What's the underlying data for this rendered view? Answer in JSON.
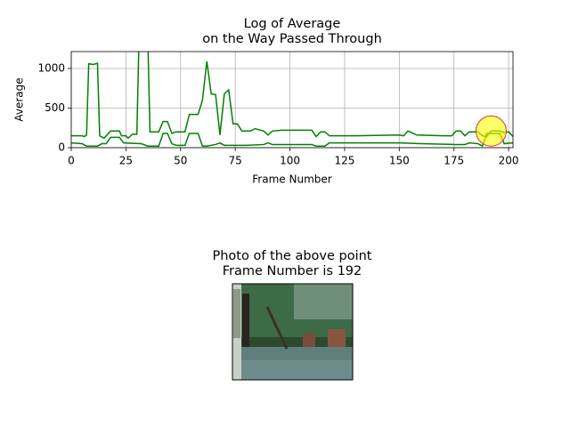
{
  "chart_data": {
    "type": "line",
    "title": [
      "Log of Average",
      "on the Way Passed Through"
    ],
    "xlabel": "Frame Number",
    "ylabel": "Average",
    "xlim": [
      0,
      202
    ],
    "ylim": [
      0,
      1213
    ],
    "xticks": [
      0,
      25,
      50,
      75,
      100,
      125,
      150,
      175,
      200
    ],
    "yticks": [
      0,
      500,
      1000
    ],
    "grid": true,
    "series": [
      {
        "color": "#008000",
        "x": [
          0,
          5,
          6,
          7,
          8,
          10,
          12,
          13,
          15,
          18,
          22,
          23,
          25,
          26,
          28,
          30,
          31,
          35,
          36,
          40,
          42,
          44,
          46,
          48,
          52,
          54,
          58,
          60,
          62,
          64,
          66,
          68,
          70,
          72,
          74,
          76,
          78,
          82,
          84,
          88,
          90,
          92,
          96,
          110,
          112,
          114,
          116,
          118,
          130,
          150,
          152,
          154,
          158,
          170,
          174,
          176,
          178,
          180,
          182,
          186,
          188,
          190,
          192,
          196,
          198,
          200,
          202
        ],
        "values": [
          150,
          150,
          140,
          160,
          1060,
          1050,
          1065,
          150,
          120,
          210,
          210,
          150,
          150,
          120,
          170,
          170,
          1400,
          1400,
          200,
          200,
          330,
          330,
          180,
          200,
          200,
          420,
          420,
          600,
          1090,
          680,
          670,
          160,
          680,
          730,
          300,
          300,
          210,
          210,
          240,
          210,
          160,
          210,
          220,
          220,
          140,
          200,
          200,
          150,
          150,
          160,
          150,
          210,
          160,
          150,
          150,
          210,
          210,
          150,
          200,
          200,
          150,
          140,
          210,
          210,
          190,
          200,
          140
        ]
      },
      {
        "color": "#008000",
        "x": [
          0,
          5,
          7,
          12,
          14,
          16,
          18,
          22,
          24,
          32,
          35,
          40,
          42,
          44,
          46,
          48,
          52,
          54,
          58,
          60,
          62,
          66,
          68,
          70,
          80,
          88,
          90,
          92,
          110,
          112,
          116,
          118,
          150,
          160,
          175,
          180,
          182,
          186,
          188,
          190,
          192,
          196,
          198,
          202
        ],
        "values": [
          60,
          50,
          20,
          20,
          50,
          50,
          130,
          130,
          60,
          50,
          20,
          20,
          180,
          180,
          50,
          30,
          30,
          180,
          180,
          20,
          20,
          40,
          60,
          30,
          30,
          40,
          60,
          40,
          40,
          20,
          20,
          60,
          60,
          50,
          40,
          40,
          60,
          50,
          20,
          180,
          180,
          180,
          50,
          60
        ]
      }
    ],
    "marker": {
      "x": 192,
      "y": 210,
      "color": "#ffff00",
      "edgecolor": "#e03030"
    }
  },
  "photo": {
    "title": [
      "Photo of the above point",
      "Frame Number is 192"
    ]
  }
}
